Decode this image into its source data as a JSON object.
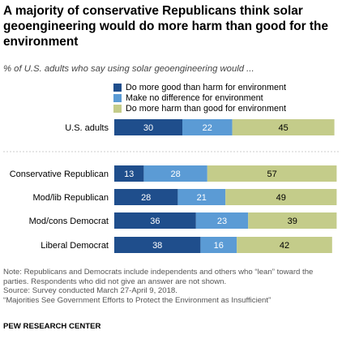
{
  "title": "A majority of conservative Republicans think solar geoengineering would do more harm than good for the environment",
  "subtitle": "% of U.S. adults who say using solar geoengineering would ...",
  "colors": {
    "good": "#1f4e8c",
    "no_difference": "#5b9bd5",
    "harm": "#c4cc8a",
    "divider": "#cccccc"
  },
  "chart_data": {
    "type": "bar",
    "orientation": "horizontal",
    "stacked": true,
    "categories": [
      "U.S. adults",
      "Conservative Republican",
      "Mod/lib Republican",
      "Mod/cons Democrat",
      "Liberal Democrat"
    ],
    "series": [
      {
        "name": "Do more good than harm for environment",
        "values": [
          30,
          13,
          28,
          36,
          38
        ]
      },
      {
        "name": "Make no difference for environment",
        "values": [
          22,
          28,
          21,
          23,
          16
        ]
      },
      {
        "name": "Do more harm than good for environment",
        "values": [
          45,
          57,
          49,
          39,
          42
        ]
      }
    ],
    "xlim": [
      0,
      100
    ],
    "grid": false,
    "legend_position": "top"
  },
  "notes": {
    "note": "Note: Republicans and Democrats include independents and others who “lean” toward the parties. Respondents who did not give an answer are not shown.",
    "source": "Source: Survey conducted March 27-April 9, 2018.",
    "report": "“Majorities See Government Efforts to Protect the Environment as Insufficient”",
    "brand": "PEW RESEARCH CENTER"
  }
}
